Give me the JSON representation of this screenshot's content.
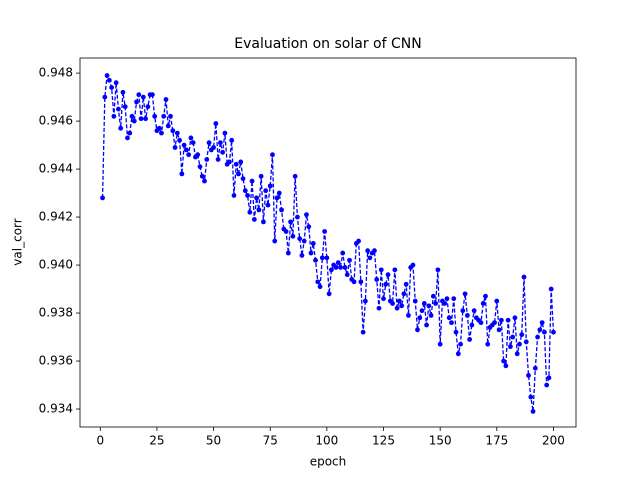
{
  "chart_data": {
    "type": "line",
    "title": "Evaluation on solar of CNN",
    "x_label": "epoch",
    "y_label": "val_corr",
    "x": [
      1,
      2,
      3,
      4,
      5,
      6,
      7,
      8,
      9,
      10,
      11,
      12,
      13,
      14,
      15,
      16,
      17,
      18,
      19,
      20,
      21,
      22,
      23,
      24,
      25,
      26,
      27,
      28,
      29,
      30,
      31,
      32,
      33,
      34,
      35,
      36,
      37,
      38,
      39,
      40,
      41,
      42,
      43,
      44,
      45,
      46,
      47,
      48,
      49,
      50,
      51,
      52,
      53,
      54,
      55,
      56,
      57,
      58,
      59,
      60,
      61,
      62,
      63,
      64,
      65,
      66,
      67,
      68,
      69,
      70,
      71,
      72,
      73,
      74,
      75,
      76,
      77,
      78,
      79,
      80,
      81,
      82,
      83,
      84,
      85,
      86,
      87,
      88,
      89,
      90,
      91,
      92,
      93,
      94,
      95,
      96,
      97,
      98,
      99,
      100,
      101,
      102,
      103,
      104,
      105,
      106,
      107,
      108,
      109,
      110,
      111,
      112,
      113,
      114,
      115,
      116,
      117,
      118,
      119,
      120,
      121,
      122,
      123,
      124,
      125,
      126,
      127,
      128,
      129,
      130,
      131,
      132,
      133,
      134,
      135,
      136,
      137,
      138,
      139,
      140,
      141,
      142,
      143,
      144,
      145,
      146,
      147,
      148,
      149,
      150,
      151,
      152,
      153,
      154,
      155,
      156,
      157,
      158,
      159,
      160,
      161,
      162,
      163,
      164,
      165,
      166,
      167,
      168,
      169,
      170,
      171,
      172,
      173,
      174,
      175,
      176,
      177,
      178,
      179,
      180,
      181,
      182,
      183,
      184,
      185,
      186,
      187,
      188,
      189,
      190,
      191,
      192,
      193,
      194,
      195,
      196,
      197,
      198,
      199,
      200
    ],
    "values": [
      0.9428,
      0.947,
      0.9479,
      0.9477,
      0.9474,
      0.9462,
      0.9476,
      0.9465,
      0.9457,
      0.9472,
      0.9466,
      0.9453,
      0.9455,
      0.9462,
      0.946,
      0.9468,
      0.9471,
      0.9461,
      0.947,
      0.9461,
      0.9466,
      0.9471,
      0.9471,
      0.9462,
      0.9456,
      0.9457,
      0.9455,
      0.9462,
      0.9469,
      0.9458,
      0.9462,
      0.9456,
      0.9449,
      0.9455,
      0.9452,
      0.9438,
      0.945,
      0.9448,
      0.9446,
      0.9453,
      0.9451,
      0.9445,
      0.9446,
      0.9441,
      0.9437,
      0.9435,
      0.9444,
      0.9451,
      0.9448,
      0.9449,
      0.9459,
      0.9444,
      0.9451,
      0.9447,
      0.9455,
      0.9442,
      0.9443,
      0.9452,
      0.9429,
      0.9442,
      0.9438,
      0.9443,
      0.9436,
      0.9431,
      0.9429,
      0.9422,
      0.9435,
      0.9419,
      0.9428,
      0.9423,
      0.9437,
      0.9418,
      0.9431,
      0.9425,
      0.9433,
      0.9446,
      0.941,
      0.9428,
      0.943,
      0.9423,
      0.9415,
      0.9414,
      0.9405,
      0.9418,
      0.9412,
      0.9437,
      0.942,
      0.9411,
      0.9404,
      0.941,
      0.9421,
      0.9416,
      0.9405,
      0.9409,
      0.9402,
      0.9393,
      0.9391,
      0.9403,
      0.9414,
      0.9403,
      0.9388,
      0.9398,
      0.94,
      0.9399,
      0.9401,
      0.9399,
      0.9405,
      0.9399,
      0.9396,
      0.9402,
      0.9394,
      0.9393,
      0.9409,
      0.941,
      0.9393,
      0.9372,
      0.9385,
      0.9406,
      0.9403,
      0.9405,
      0.9406,
      0.9394,
      0.9382,
      0.9398,
      0.9386,
      0.9392,
      0.9396,
      0.9385,
      0.9384,
      0.9398,
      0.9382,
      0.9385,
      0.9383,
      0.9388,
      0.9392,
      0.9379,
      0.9399,
      0.94,
      0.9385,
      0.9373,
      0.9378,
      0.9381,
      0.9384,
      0.9375,
      0.9383,
      0.9379,
      0.9387,
      0.9384,
      0.9398,
      0.9367,
      0.9385,
      0.9384,
      0.9386,
      0.9378,
      0.9376,
      0.9386,
      0.9372,
      0.9363,
      0.9367,
      0.9381,
      0.9388,
      0.9379,
      0.9369,
      0.9375,
      0.9381,
      0.9378,
      0.9377,
      0.9376,
      0.9384,
      0.9387,
      0.9367,
      0.9374,
      0.9375,
      0.9376,
      0.9385,
      0.9373,
      0.9377,
      0.936,
      0.9358,
      0.9377,
      0.9366,
      0.937,
      0.9378,
      0.9363,
      0.9367,
      0.9371,
      0.9395,
      0.9368,
      0.9354,
      0.9345,
      0.9339,
      0.9357,
      0.937,
      0.9373,
      0.9376,
      0.9372,
      0.935,
      0.9353,
      0.939,
      0.9372
    ],
    "color": "#0000ff",
    "line_style": "dashed",
    "marker": "circle",
    "xlim": [
      -8.95,
      209.95
    ],
    "xticks": [
      0,
      25,
      50,
      75,
      100,
      125,
      150,
      175,
      200
    ],
    "ylim": [
      0.93325,
      0.94863
    ],
    "yticks": [
      0.934,
      0.936,
      0.938,
      {
        "value": 0.94,
        "label": "0.940"
      },
      0.942,
      0.944,
      0.946,
      0.948
    ],
    "grid": false
  }
}
